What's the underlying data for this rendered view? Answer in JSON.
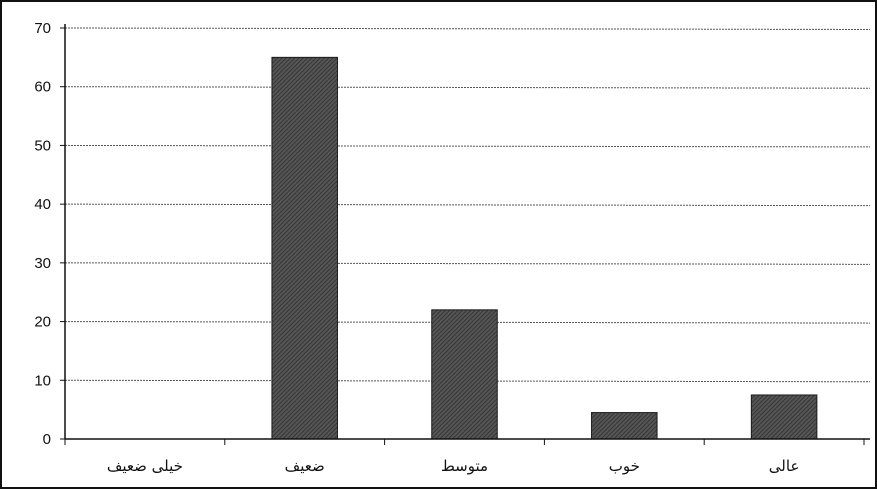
{
  "chart_data": {
    "type": "bar",
    "categories": [
      "خیلی ضعیف",
      "ضعیف",
      "متوسط",
      "خوب",
      "عالی"
    ],
    "values": [
      0,
      65,
      22,
      4.5,
      7.5
    ],
    "title": "",
    "xlabel": "",
    "ylabel": "",
    "ylim": [
      0,
      70
    ],
    "yticks": [
      0,
      10,
      20,
      30,
      40,
      50,
      60,
      70
    ],
    "grid": true,
    "legend": "none",
    "colors": {
      "bar_fill": "#444444",
      "bar_stroke": "#1a1a1a",
      "grid": "#555555",
      "axis": "#111111",
      "frame": "#111111"
    }
  }
}
